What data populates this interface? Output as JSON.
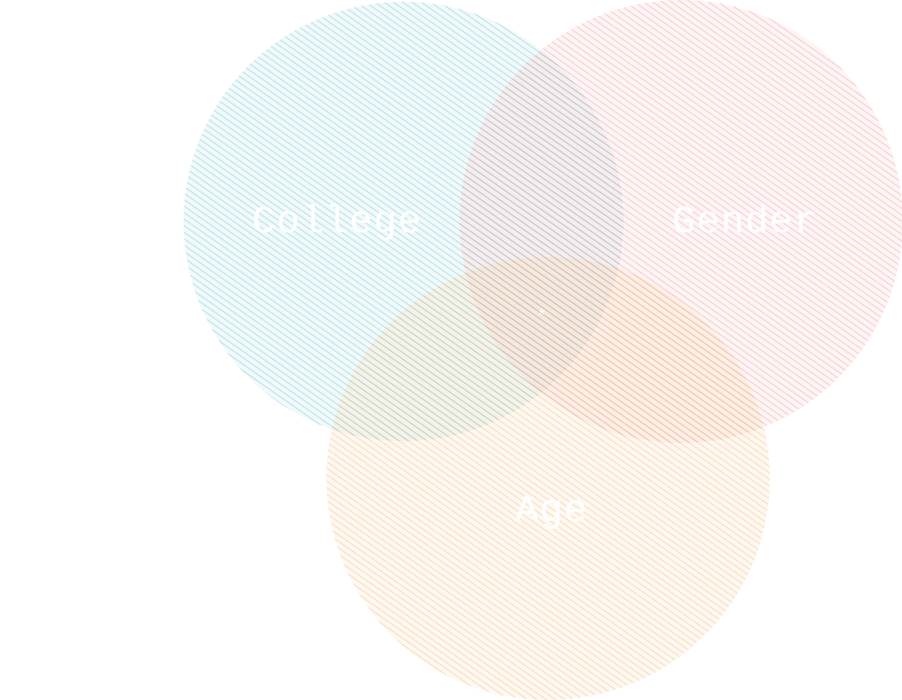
{
  "diagram": {
    "type": "venn",
    "sets": [
      {
        "key": "college",
        "label": "College",
        "color": "#5bbfc9"
      },
      {
        "key": "gender",
        "label": "Gender",
        "color": "#f08a8f"
      },
      {
        "key": "age",
        "label": "Age",
        "color": "#f4b067"
      }
    ],
    "center_label": "*"
  }
}
